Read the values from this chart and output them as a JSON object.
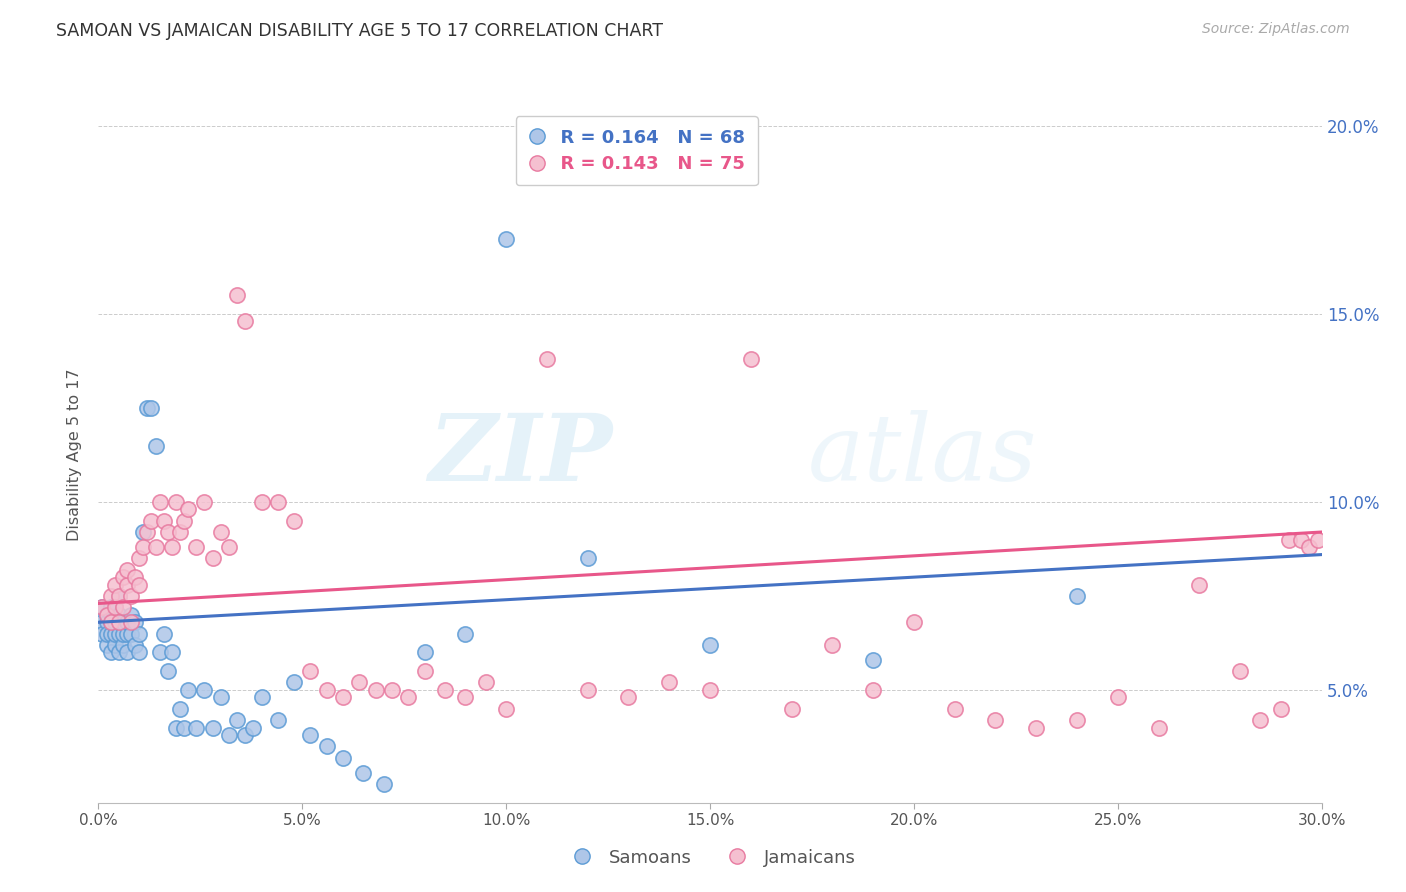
{
  "title": "SAMOAN VS JAMAICAN DISABILITY AGE 5 TO 17 CORRELATION CHART",
  "source": "Source: ZipAtlas.com",
  "ylabel": "Disability Age 5 to 17",
  "samoan_color": "#aec6e8",
  "samoan_edge": "#5b9bd5",
  "jamaican_color": "#f5c0d0",
  "jamaican_edge": "#e87aa0",
  "line_samoan": "#4472c4",
  "line_jamaican": "#e8578a",
  "legend_r_samoan": "R = 0.164",
  "legend_n_samoan": "N = 68",
  "legend_r_jamaican": "R = 0.143",
  "legend_n_jamaican": "N = 75",
  "watermark_zip": "ZIP",
  "watermark_atlas": "atlas",
  "xlim": [
    0.0,
    0.3
  ],
  "ylim": [
    0.02,
    0.205
  ],
  "ytick_vals": [
    0.05,
    0.1,
    0.15,
    0.2
  ],
  "ytick_labels": [
    "5.0%",
    "10.0%",
    "15.0%",
    "20.0%"
  ],
  "xtick_vals": [
    0.0,
    0.05,
    0.1,
    0.15,
    0.2,
    0.25,
    0.3
  ],
  "xtick_labels": [
    "0.0%",
    "5.0%",
    "10.0%",
    "15.0%",
    "20.0%",
    "25.0%",
    "30.0%"
  ],
  "samoan_x": [
    0.001,
    0.001,
    0.001,
    0.002,
    0.002,
    0.002,
    0.002,
    0.003,
    0.003,
    0.003,
    0.003,
    0.003,
    0.004,
    0.004,
    0.004,
    0.004,
    0.005,
    0.005,
    0.005,
    0.005,
    0.005,
    0.006,
    0.006,
    0.006,
    0.007,
    0.007,
    0.007,
    0.008,
    0.008,
    0.009,
    0.009,
    0.01,
    0.01,
    0.011,
    0.012,
    0.013,
    0.014,
    0.015,
    0.016,
    0.017,
    0.018,
    0.019,
    0.02,
    0.021,
    0.022,
    0.024,
    0.026,
    0.028,
    0.03,
    0.032,
    0.034,
    0.036,
    0.038,
    0.04,
    0.044,
    0.048,
    0.052,
    0.056,
    0.06,
    0.065,
    0.07,
    0.08,
    0.09,
    0.1,
    0.12,
    0.15,
    0.19,
    0.24
  ],
  "samoan_y": [
    0.068,
    0.072,
    0.065,
    0.07,
    0.068,
    0.062,
    0.065,
    0.06,
    0.065,
    0.07,
    0.072,
    0.068,
    0.062,
    0.065,
    0.068,
    0.072,
    0.06,
    0.065,
    0.068,
    0.07,
    0.075,
    0.062,
    0.065,
    0.068,
    0.06,
    0.065,
    0.068,
    0.065,
    0.07,
    0.062,
    0.068,
    0.06,
    0.065,
    0.092,
    0.125,
    0.125,
    0.115,
    0.06,
    0.065,
    0.055,
    0.06,
    0.04,
    0.045,
    0.04,
    0.05,
    0.04,
    0.05,
    0.04,
    0.048,
    0.038,
    0.042,
    0.038,
    0.04,
    0.048,
    0.042,
    0.052,
    0.038,
    0.035,
    0.032,
    0.028,
    0.025,
    0.06,
    0.065,
    0.17,
    0.085,
    0.062,
    0.058,
    0.075
  ],
  "jamaican_x": [
    0.001,
    0.002,
    0.003,
    0.003,
    0.004,
    0.004,
    0.005,
    0.005,
    0.006,
    0.006,
    0.007,
    0.007,
    0.008,
    0.008,
    0.009,
    0.01,
    0.01,
    0.011,
    0.012,
    0.013,
    0.014,
    0.015,
    0.016,
    0.017,
    0.018,
    0.019,
    0.02,
    0.021,
    0.022,
    0.024,
    0.026,
    0.028,
    0.03,
    0.032,
    0.034,
    0.036,
    0.04,
    0.044,
    0.048,
    0.052,
    0.056,
    0.06,
    0.064,
    0.068,
    0.072,
    0.076,
    0.08,
    0.085,
    0.09,
    0.095,
    0.1,
    0.11,
    0.12,
    0.13,
    0.14,
    0.15,
    0.16,
    0.17,
    0.18,
    0.19,
    0.2,
    0.21,
    0.22,
    0.23,
    0.24,
    0.25,
    0.26,
    0.27,
    0.28,
    0.285,
    0.29,
    0.292,
    0.295,
    0.297,
    0.299
  ],
  "jamaican_y": [
    0.072,
    0.07,
    0.075,
    0.068,
    0.072,
    0.078,
    0.068,
    0.075,
    0.08,
    0.072,
    0.078,
    0.082,
    0.075,
    0.068,
    0.08,
    0.078,
    0.085,
    0.088,
    0.092,
    0.095,
    0.088,
    0.1,
    0.095,
    0.092,
    0.088,
    0.1,
    0.092,
    0.095,
    0.098,
    0.088,
    0.1,
    0.085,
    0.092,
    0.088,
    0.155,
    0.148,
    0.1,
    0.1,
    0.095,
    0.055,
    0.05,
    0.048,
    0.052,
    0.05,
    0.05,
    0.048,
    0.055,
    0.05,
    0.048,
    0.052,
    0.045,
    0.138,
    0.05,
    0.048,
    0.052,
    0.05,
    0.138,
    0.045,
    0.062,
    0.05,
    0.068,
    0.045,
    0.042,
    0.04,
    0.042,
    0.048,
    0.04,
    0.078,
    0.055,
    0.042,
    0.045,
    0.09,
    0.09,
    0.088,
    0.09
  ]
}
